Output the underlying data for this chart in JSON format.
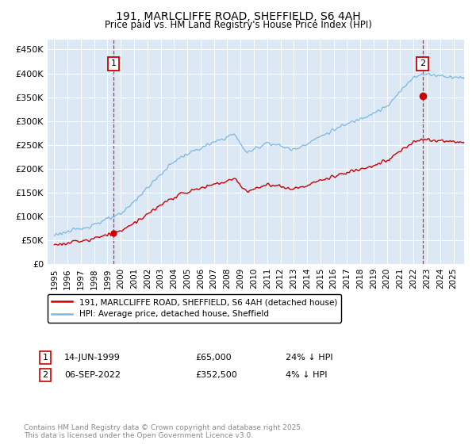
{
  "title_line1": "191, MARLCLIFFE ROAD, SHEFFIELD, S6 4AH",
  "title_line2": "Price paid vs. HM Land Registry's House Price Index (HPI)",
  "background_color": "#dce9f5",
  "fig_bg_color": "#ffffff",
  "hpi_color": "#7ab8e0",
  "price_color": "#cc0000",
  "annotation_color": "#cc0000",
  "ylim": [
    0,
    470000
  ],
  "yticks": [
    0,
    50000,
    100000,
    150000,
    200000,
    250000,
    300000,
    350000,
    400000,
    450000
  ],
  "ytick_labels": [
    "£0",
    "£50K",
    "£100K",
    "£150K",
    "£200K",
    "£250K",
    "£300K",
    "£350K",
    "£400K",
    "£450K"
  ],
  "sale1_date": 1999.45,
  "sale1_price": 65000,
  "sale2_date": 2022.68,
  "sale2_price": 352500,
  "legend_label_price": "191, MARLCLIFFE ROAD, SHEFFIELD, S6 4AH (detached house)",
  "legend_label_hpi": "HPI: Average price, detached house, Sheffield",
  "annotation1_label": "1",
  "annotation2_label": "2",
  "footer": "Contains HM Land Registry data © Crown copyright and database right 2025.\nThis data is licensed under the Open Government Licence v3.0.",
  "xlim_start": 1994.5,
  "xlim_end": 2025.8
}
